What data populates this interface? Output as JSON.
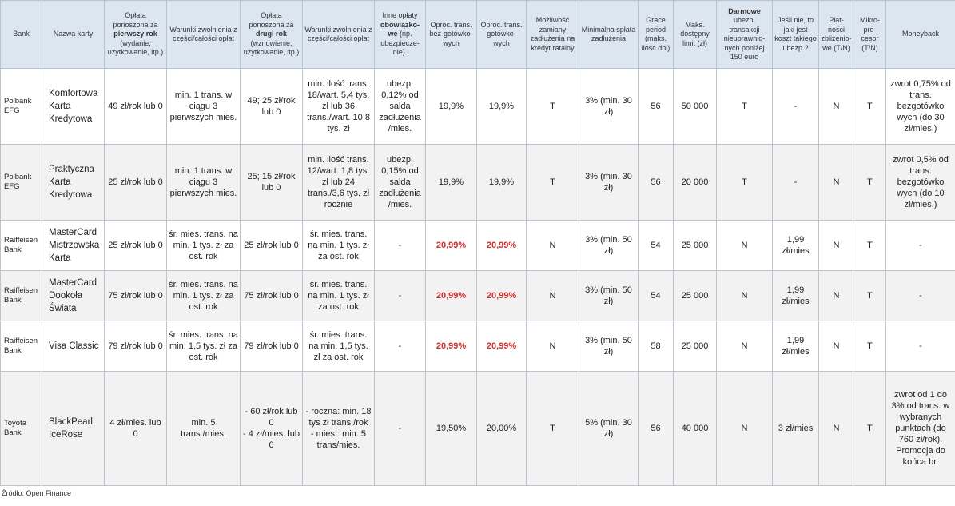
{
  "headers": [
    {
      "pre": "Bank",
      "bold": "",
      "post": ""
    },
    {
      "pre": "Nazwa karty",
      "bold": "",
      "post": ""
    },
    {
      "pre": "Opłata ponoszona za ",
      "bold": "pierwszy rok",
      "post": " (wydanie, użytkowanie, itp.)"
    },
    {
      "pre": "Warunki zwolnienia z części/całości opłat",
      "bold": "",
      "post": ""
    },
    {
      "pre": "Opłata ponoszona za ",
      "bold": "drugi rok",
      "post": " (wznowienie, użytkowanie, itp.)"
    },
    {
      "pre": "Warunki zwolnienia z części/całości opłat",
      "bold": "",
      "post": ""
    },
    {
      "pre": "Inne opłaty ",
      "bold": "obowiązko-we",
      "post": " (np. ubezpiecze-nie)."
    },
    {
      "pre": "Oproc. trans. bez-gotówko-wych",
      "bold": "",
      "post": ""
    },
    {
      "pre": "Oproc. trans. gotówko-wych",
      "bold": "",
      "post": ""
    },
    {
      "pre": "Możliwość zamiany zadłużenia na kredyt ratalny",
      "bold": "",
      "post": ""
    },
    {
      "pre": "Minimalna spłata zadłużenia",
      "bold": "",
      "post": ""
    },
    {
      "pre": "Grace period (maks. ilość dni)",
      "bold": "",
      "post": ""
    },
    {
      "pre": "Maks. dostępny limit (zł)",
      "bold": "",
      "post": ""
    },
    {
      "pre": "",
      "bold": "Darmowe",
      "post": " ubezp. transakcji nieuprawnio-nych poniżej 150 euro"
    },
    {
      "pre": "Jeśli nie, to jaki jest koszt takiego ubezp.?",
      "bold": "",
      "post": ""
    },
    {
      "pre": "Płat-ności zbliżenio-we (T/N)",
      "bold": "",
      "post": ""
    },
    {
      "pre": "Mikro-pro-cesor (T/N)",
      "bold": "",
      "post": ""
    },
    {
      "pre": "Moneyback",
      "bold": "",
      "post": ""
    }
  ],
  "rows": [
    [
      "Polbank EFG",
      "Komfortowa Karta Kredytowa",
      "49 zł/rok lub 0",
      "min. 1 trans. w ciągu 3 pierwszych mies.",
      "49; 25 zł/rok lub 0",
      "min. ilość trans. 18/wart. 5,4 tys. zł lub 36 trans./wart. 10,8 tys. zł",
      "ubezp. 0,12% od salda zadłużenia /mies.",
      "19,9%",
      "19,9%",
      "T",
      "3% (min. 30 zł)",
      "56",
      "50 000",
      "T",
      "-",
      "N",
      "T",
      "zwrot 0,75% od trans. bezgotówko wych (do 30 zł/mies.)"
    ],
    [
      "Polbank EFG",
      "Praktyczna Karta Kredytowa",
      "25 zł/rok lub 0",
      "min. 1 trans. w ciągu 3 pierwszych mies.",
      "25; 15 zł/rok lub 0",
      "min. ilość trans. 12/wart. 1,8 tys. zł lub 24 trans./3,6 tys. zł rocznie",
      "ubezp. 0,15% od salda zadłużenia /mies.",
      "19,9%",
      "19,9%",
      "T",
      "3% (min. 30 zł)",
      "56",
      "20 000",
      "T",
      "-",
      "N",
      "T",
      "zwrot 0,5% od trans. bezgotówko wych (do 10 zł/mies.)"
    ],
    [
      "Raiffeisen Bank",
      "MasterCard Mistrzowska Karta",
      "25 zł/rok lub 0",
      "śr. mies. trans. na min. 1 tys. zł za ost. rok",
      "25 zł/rok lub 0",
      "śr. mies. trans. na min. 1 tys. zł za ost. rok",
      "-",
      "20,99%",
      "20,99%",
      "N",
      "3% (min. 50 zł)",
      "54",
      "25 000",
      "N",
      "1,99 zł/mies",
      "N",
      "T",
      "-"
    ],
    [
      "Raiffeisen Bank",
      "MasterCard Dookoła Świata",
      "75 zł/rok lub 0",
      "śr. mies. trans. na min. 1 tys. zł za ost. rok",
      "75 zł/rok lub 0",
      "śr. mies. trans. na min. 1 tys. zł za ost. rok",
      "-",
      "20,99%",
      "20,99%",
      "N",
      "3% (min. 50 zł)",
      "54",
      "25 000",
      "N",
      "1,99 zł/mies",
      "N",
      "T",
      "-"
    ],
    [
      "Raiffeisen Bank",
      "Visa Classic",
      "79 zł/rok lub 0",
      "śr. mies. trans. na min. 1,5 tys. zł za ost. rok",
      "79 zł/rok lub 0",
      "śr. mies. trans. na min. 1,5 tys. zł za ost. rok",
      "-",
      "20,99%",
      "20,99%",
      "N",
      "3% (min. 50 zł)",
      "58",
      "25 000",
      "N",
      "1,99 zł/mies",
      "N",
      "T",
      "-"
    ],
    [
      "Toyota Bank",
      "BlackPearl, IceRose",
      "4 zł/mies. lub 0",
      "min. 5 trans./mies.",
      "- 60 zł/rok lub 0\n- 4 zł/mies. lub 0",
      "- roczna: min. 18 tys zł trans./rok\n- mies.: min. 5 trans/mies.",
      "-",
      "19,50%",
      "20,00%",
      "T",
      "5% (min. 30 zł)",
      "56",
      "40 000",
      "N",
      "3 zł/mies",
      "N",
      "T",
      "zwrot od 1 do 3% od trans. w wybranych punktach (do 760 zł/rok). Promocja do końca br."
    ]
  ],
  "highlight_color": "#d0312d",
  "source": "Źródło: Open Finance"
}
